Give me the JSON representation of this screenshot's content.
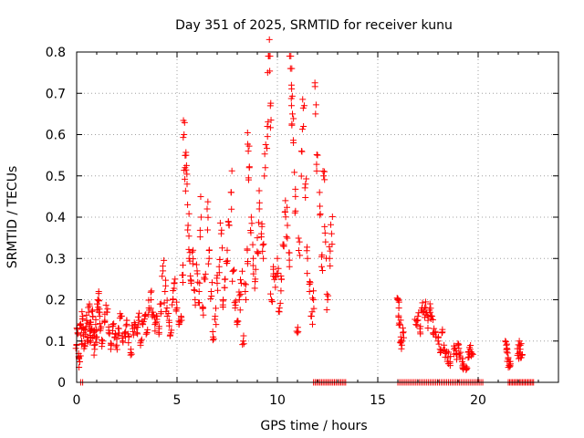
{
  "chart_data": {
    "type": "scatter",
    "title": "Day 351 of 2025, SRMTID for receiver kunu",
    "xlabel": "GPS time / hours",
    "ylabel": "SRMTID / TECUs",
    "xlim": [
      0,
      24
    ],
    "ylim": [
      0,
      0.8
    ],
    "xticks": [
      0,
      5,
      10,
      15,
      20
    ],
    "yticks": [
      0,
      0.1,
      0.2,
      0.3,
      0.4,
      0.5,
      0.6,
      0.7,
      0.8
    ],
    "xtick_labels": [
      "0",
      "5",
      "10",
      "15",
      "20"
    ],
    "ytick_labels": [
      "0",
      "0.1",
      "0.2",
      "0.3",
      "0.4",
      "0.5",
      "0.6",
      "0.7",
      "0.8"
    ],
    "grid": true,
    "marker": "+",
    "color": "#ff0000",
    "series": [
      {
        "name": "SRMTID",
        "points": [
          [
            0.0,
            0.09
          ],
          [
            0.05,
            0.12
          ],
          [
            0.1,
            0.07
          ],
          [
            0.15,
            0.05
          ],
          [
            0.2,
            0.14
          ],
          [
            0.25,
            0.1
          ],
          [
            0.3,
            0.16
          ],
          [
            0.35,
            0.12
          ],
          [
            0.4,
            0.09
          ],
          [
            0.45,
            0.13
          ],
          [
            0.5,
            0.15
          ],
          [
            0.55,
            0.11
          ],
          [
            0.6,
            0.17
          ],
          [
            0.65,
            0.14
          ],
          [
            0.7,
            0.1
          ],
          [
            0.75,
            0.13
          ],
          [
            0.8,
            0.16
          ],
          [
            0.85,
            0.12
          ],
          [
            0.9,
            0.08
          ],
          [
            0.95,
            0.14
          ],
          [
            1.0,
            0.11
          ],
          [
            1.05,
            0.2
          ],
          [
            1.1,
            0.22
          ],
          [
            1.15,
            0.16
          ],
          [
            1.2,
            0.13
          ],
          [
            1.3,
            0.1
          ],
          [
            1.4,
            0.15
          ],
          [
            1.5,
            0.17
          ],
          [
            1.6,
            0.12
          ],
          [
            1.7,
            0.08
          ],
          [
            1.8,
            0.14
          ],
          [
            1.9,
            0.11
          ],
          [
            2.0,
            0.09
          ],
          [
            2.1,
            0.13
          ],
          [
            2.2,
            0.16
          ],
          [
            2.3,
            0.1
          ],
          [
            2.4,
            0.12
          ],
          [
            2.5,
            0.15
          ],
          [
            2.6,
            0.11
          ],
          [
            2.7,
            0.08
          ],
          [
            2.8,
            0.13
          ],
          [
            2.9,
            0.14
          ],
          [
            3.0,
            0.12
          ],
          [
            3.1,
            0.15
          ],
          [
            3.2,
            0.1
          ],
          [
            3.3,
            0.14
          ],
          [
            3.4,
            0.16
          ],
          [
            3.5,
            0.12
          ],
          [
            3.6,
            0.18
          ],
          [
            3.7,
            0.2
          ],
          [
            3.8,
            0.17
          ],
          [
            3.9,
            0.14
          ],
          [
            4.0,
            0.16
          ],
          [
            4.1,
            0.13
          ],
          [
            4.2,
            0.19
          ],
          [
            4.3,
            0.27
          ],
          [
            4.4,
            0.22
          ],
          [
            4.5,
            0.18
          ],
          [
            4.6,
            0.15
          ],
          [
            4.7,
            0.12
          ],
          [
            4.8,
            0.2
          ],
          [
            4.9,
            0.25
          ],
          [
            5.0,
            0.18
          ],
          [
            5.1,
            0.14
          ],
          [
            5.2,
            0.16
          ],
          [
            5.3,
            0.26
          ],
          [
            5.35,
            0.6
          ],
          [
            5.4,
            0.52
          ],
          [
            5.45,
            0.55
          ],
          [
            5.5,
            0.48
          ],
          [
            5.55,
            0.38
          ],
          [
            5.6,
            0.3
          ],
          [
            5.7,
            0.24
          ],
          [
            5.8,
            0.32
          ],
          [
            5.9,
            0.2
          ],
          [
            6.0,
            0.27
          ],
          [
            6.1,
            0.22
          ],
          [
            6.2,
            0.4
          ],
          [
            6.3,
            0.18
          ],
          [
            6.4,
            0.25
          ],
          [
            6.5,
            0.42
          ],
          [
            6.6,
            0.3
          ],
          [
            6.7,
            0.22
          ],
          [
            6.8,
            0.11
          ],
          [
            6.9,
            0.16
          ],
          [
            7.0,
            0.24
          ],
          [
            7.1,
            0.28
          ],
          [
            7.2,
            0.36
          ],
          [
            7.3,
            0.2
          ],
          [
            7.4,
            0.25
          ],
          [
            7.5,
            0.32
          ],
          [
            7.6,
            0.38
          ],
          [
            7.7,
            0.46
          ],
          [
            7.8,
            0.27
          ],
          [
            7.9,
            0.18
          ],
          [
            8.0,
            0.14
          ],
          [
            8.1,
            0.2
          ],
          [
            8.2,
            0.24
          ],
          [
            8.3,
            0.1
          ],
          [
            8.4,
            0.22
          ],
          [
            8.5,
            0.32
          ],
          [
            8.55,
            0.56
          ],
          [
            8.6,
            0.52
          ],
          [
            8.7,
            0.4
          ],
          [
            8.8,
            0.3
          ],
          [
            8.9,
            0.25
          ],
          [
            9.0,
            0.35
          ],
          [
            9.1,
            0.42
          ],
          [
            9.2,
            0.36
          ],
          [
            9.3,
            0.3
          ],
          [
            9.4,
            0.52
          ],
          [
            9.5,
            0.62
          ],
          [
            9.55,
            0.79
          ],
          [
            9.6,
            0.83
          ],
          [
            9.65,
            0.67
          ],
          [
            9.7,
            0.2
          ],
          [
            9.8,
            0.28
          ],
          [
            9.9,
            0.23
          ],
          [
            10.0,
            0.3
          ],
          [
            10.1,
            0.18
          ],
          [
            10.2,
            0.25
          ],
          [
            10.3,
            0.33
          ],
          [
            10.4,
            0.44
          ],
          [
            10.5,
            0.38
          ],
          [
            10.6,
            0.28
          ],
          [
            10.65,
            0.76
          ],
          [
            10.7,
            0.72
          ],
          [
            10.75,
            0.65
          ],
          [
            10.8,
            0.58
          ],
          [
            10.9,
            0.45
          ],
          [
            11.0,
            0.12
          ],
          [
            11.1,
            0.34
          ],
          [
            11.2,
            0.56
          ],
          [
            11.3,
            0.62
          ],
          [
            11.4,
            0.48
          ],
          [
            11.5,
            0.3
          ],
          [
            11.6,
            0.22
          ],
          [
            11.7,
            0.16
          ],
          [
            11.8,
            0.2
          ],
          [
            11.9,
            0.65
          ],
          [
            12.0,
            0.55
          ],
          [
            12.1,
            0.46
          ],
          [
            12.2,
            0.28
          ],
          [
            12.3,
            0.5
          ],
          [
            12.4,
            0.34
          ],
          [
            12.5,
            0.2
          ],
          [
            12.6,
            0.3
          ],
          [
            12.7,
            0.36
          ],
          [
            16.0,
            0.2
          ],
          [
            16.05,
            0.18
          ],
          [
            16.1,
            0.14
          ],
          [
            16.15,
            0.11
          ],
          [
            16.2,
            0.09
          ],
          [
            16.25,
            0.12
          ],
          [
            16.9,
            0.14
          ],
          [
            17.0,
            0.16
          ],
          [
            17.1,
            0.13
          ],
          [
            17.2,
            0.18
          ],
          [
            17.3,
            0.17
          ],
          [
            17.4,
            0.18
          ],
          [
            17.5,
            0.15
          ],
          [
            17.6,
            0.19
          ],
          [
            17.7,
            0.16
          ],
          [
            17.8,
            0.13
          ],
          [
            17.9,
            0.11
          ],
          [
            18.0,
            0.1
          ],
          [
            18.1,
            0.08
          ],
          [
            18.2,
            0.12
          ],
          [
            18.3,
            0.09
          ],
          [
            18.4,
            0.07
          ],
          [
            18.5,
            0.06
          ],
          [
            18.6,
            0.05
          ],
          [
            18.8,
            0.08
          ],
          [
            18.9,
            0.07
          ],
          [
            19.0,
            0.09
          ],
          [
            19.1,
            0.06
          ],
          [
            19.2,
            0.05
          ],
          [
            19.3,
            0.04
          ],
          [
            19.4,
            0.03
          ],
          [
            19.5,
            0.06
          ],
          [
            19.6,
            0.08
          ],
          [
            19.7,
            0.07
          ],
          [
            21.4,
            0.09
          ],
          [
            21.45,
            0.08
          ],
          [
            21.5,
            0.06
          ],
          [
            21.55,
            0.05
          ],
          [
            21.6,
            0.04
          ],
          [
            22.0,
            0.07
          ],
          [
            22.05,
            0.1
          ],
          [
            22.1,
            0.08
          ],
          [
            22.15,
            0.06
          ]
        ],
        "zero_runs": [
          [
            0.2,
            0.35,
            0.1
          ],
          [
            11.8,
            13.4,
            0.08
          ],
          [
            16.0,
            20.3,
            0.09
          ],
          [
            21.5,
            22.8,
            0.07
          ]
        ]
      }
    ]
  }
}
